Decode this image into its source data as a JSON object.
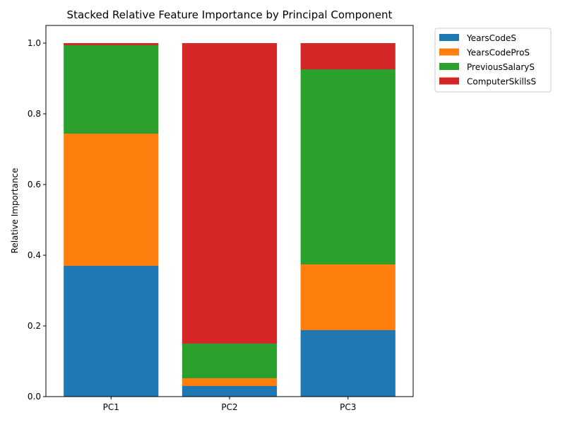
{
  "chart_data": {
    "type": "bar",
    "stacked": true,
    "title": "Stacked Relative Feature Importance by Principal Component",
    "xlabel": "",
    "ylabel": "Relative Importance",
    "categories": [
      "PC1",
      "PC2",
      "PC3"
    ],
    "ylim": [
      0,
      1.05
    ],
    "yticks": [
      "0.0",
      "0.2",
      "0.4",
      "0.6",
      "0.8",
      "1.0"
    ],
    "grid": false,
    "legend_placement": "outside-top-right",
    "series": [
      {
        "name": "YearsCodeS",
        "color": "#1f77b4",
        "values": [
          0.37,
          0.03,
          0.188
        ]
      },
      {
        "name": "YearsCodeProS",
        "color": "#ff7f0e",
        "values": [
          0.374,
          0.022,
          0.186
        ]
      },
      {
        "name": "PreviousSalaryS",
        "color": "#2ca02c",
        "values": [
          0.25,
          0.098,
          0.552
        ]
      },
      {
        "name": "ComputerSkillsS",
        "color": "#d62728",
        "values": [
          0.006,
          0.85,
          0.074
        ]
      }
    ]
  }
}
